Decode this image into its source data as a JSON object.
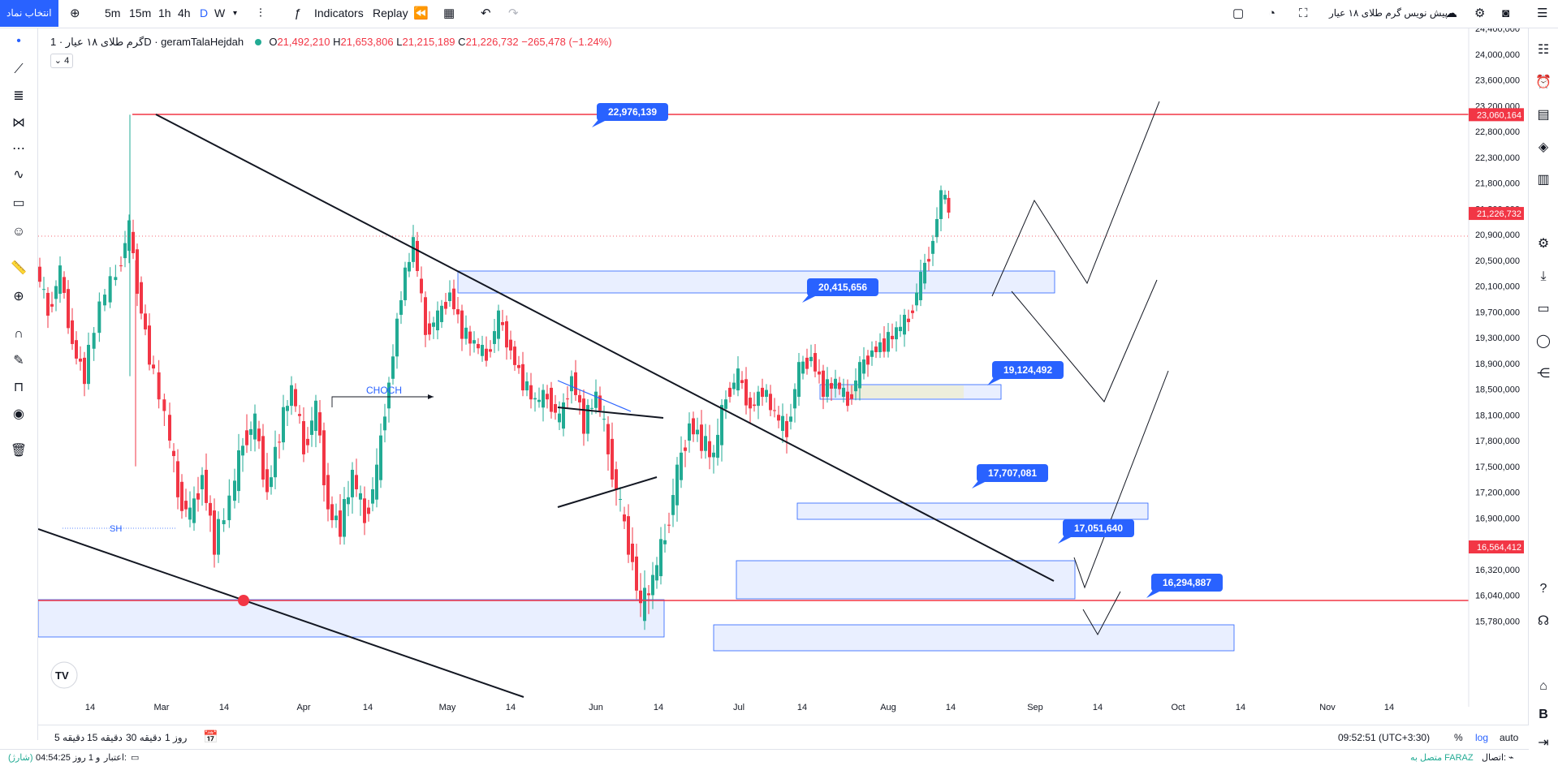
{
  "topbar": {
    "symbol_button": "انتخاب نماد",
    "intervals": [
      "5m",
      "15m",
      "1h",
      "4h",
      "D",
      "W"
    ],
    "active_interval": "D",
    "indicators_label": "Indicators",
    "replay_label": "Replay",
    "idea_label": "پیش نویس گرم طلای ۱۸ عیار"
  },
  "legend": {
    "title": "گرم طلای ۱۸ عیار · 1D · geramTalaHejdah",
    "open_label": "O",
    "open": "21,492,210",
    "high_label": "H",
    "high": "21,653,806",
    "low_label": "L",
    "low": "21,215,189",
    "close_label": "C",
    "close": "21,226,732",
    "change": "−265,478 (−1.24%)",
    "collapse_count": "4"
  },
  "chart_data": {
    "type": "candlestick",
    "symbol": "geramTalaHejdah",
    "interval": "1D",
    "y_axis_ticks": [
      "24,400,000",
      "24,000,000",
      "23,600,000",
      "23,200,000",
      "22,800,000",
      "22,300,000",
      "21,800,000",
      "21,300,000",
      "20,900,000",
      "20,500,000",
      "20,100,000",
      "19,700,000",
      "19,300,000",
      "18,900,000",
      "18,500,000",
      "18,100,000",
      "17,800,000",
      "17,500,000",
      "17,200,000",
      "16,900,000",
      "16,600,000",
      "16,320,000",
      "16,040,000",
      "15,780,000"
    ],
    "y_tick_values": [
      24400000,
      24000000,
      23600000,
      23200000,
      22800000,
      22300000,
      21800000,
      21300000,
      20900000,
      20500000,
      20100000,
      19700000,
      19300000,
      18900000,
      18500000,
      18100000,
      17800000,
      17500000,
      17200000,
      16900000,
      16600000,
      16320000,
      16040000,
      15780000
    ],
    "x_axis_ticks": [
      "14",
      "Mar",
      "14",
      "Apr",
      "14",
      "May",
      "14",
      "Jun",
      "14",
      "Jul",
      "14",
      "Aug",
      "14",
      "Sep",
      "14",
      "Oct",
      "14",
      "Nov",
      "14"
    ],
    "price_labels": [
      {
        "value": "23,060,164",
        "color": "#f23645"
      },
      {
        "value": "21,226,732",
        "color": "#f23645"
      },
      {
        "value": "16,564,412",
        "color": "#f23645"
      }
    ],
    "horizontal_lines": [
      23060164,
      16564412
    ],
    "last_price": 21226732,
    "level_tags": [
      "22,976,139",
      "20,415,656",
      "19,124,492",
      "17,707,081",
      "17,051,640",
      "16,294,887"
    ],
    "annotations": [
      "CHOCH",
      "SH"
    ],
    "colors": {
      "up": "#22ab94",
      "down": "#f23645",
      "zone": "#2962ff",
      "tag": "#2962ff"
    }
  },
  "bottombar": {
    "ranges": [
      "5 دقیقه",
      "15 دقیقه",
      "30 دقیقه",
      "1 روز"
    ],
    "clock": "09:52:51 (UTC+3:30)",
    "percent": "%",
    "log": "log",
    "auto": "auto"
  },
  "statusbar": {
    "left_label": "(شارژ)",
    "left_value": "04:54:25 و 1 روز",
    "left_prefix": "اعتبار:",
    "right_label": "اتصال:",
    "right_value": "متصل به FARAZ"
  }
}
